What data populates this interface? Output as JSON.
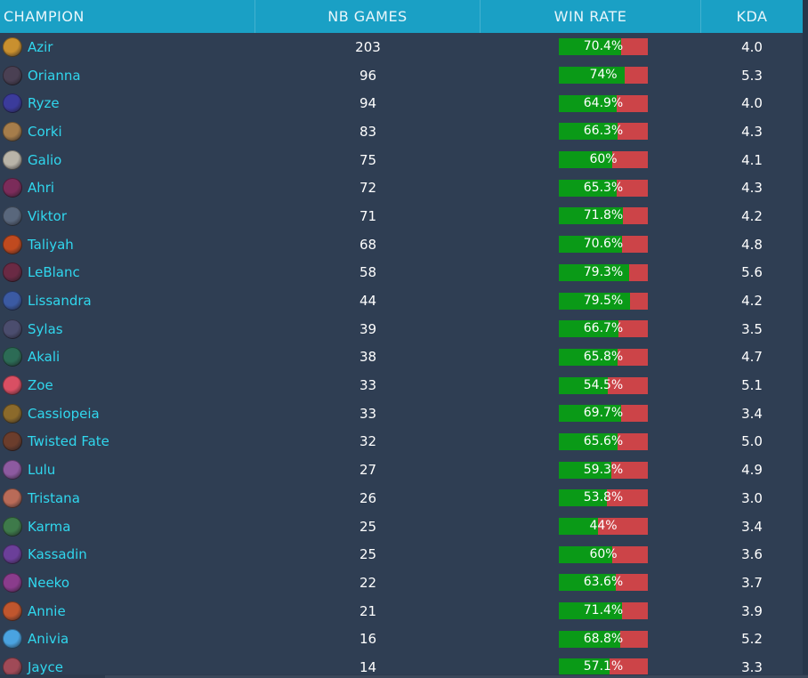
{
  "header": {
    "champion": "CHAMPION",
    "games": "NB GAMES",
    "winrate": "WIN RATE",
    "kda": "KDA"
  },
  "colors": {
    "header_bg": "#1aa0c5",
    "body_bg": "#2f3e53",
    "link": "#30d7ee",
    "win_green": "#0a9a17",
    "loss_red": "#cc4448"
  },
  "rows": [
    {
      "name": "Azir",
      "games": "203",
      "winrate": "70.4%",
      "wr": 0.704,
      "kda": "4.0",
      "icon": "azir-icon",
      "color": "#c9902f"
    },
    {
      "name": "Orianna",
      "games": "96",
      "winrate": "74%",
      "wr": 0.74,
      "kda": "5.3",
      "icon": "orianna-icon",
      "color": "#4a4053"
    },
    {
      "name": "Ryze",
      "games": "94",
      "winrate": "64.9%",
      "wr": 0.649,
      "kda": "4.0",
      "icon": "ryze-icon",
      "color": "#3b3b9b"
    },
    {
      "name": "Corki",
      "games": "83",
      "winrate": "66.3%",
      "wr": 0.663,
      "kda": "4.3",
      "icon": "corki-icon",
      "color": "#a67d4b"
    },
    {
      "name": "Galio",
      "games": "75",
      "winrate": "60%",
      "wr": 0.6,
      "kda": "4.1",
      "icon": "galio-icon",
      "color": "#b9b4a8"
    },
    {
      "name": "Ahri",
      "games": "72",
      "winrate": "65.3%",
      "wr": 0.653,
      "kda": "4.3",
      "icon": "ahri-icon",
      "color": "#7b2c5a"
    },
    {
      "name": "Viktor",
      "games": "71",
      "winrate": "71.8%",
      "wr": 0.718,
      "kda": "4.2",
      "icon": "viktor-icon",
      "color": "#59677c"
    },
    {
      "name": "Taliyah",
      "games": "68",
      "winrate": "70.6%",
      "wr": 0.706,
      "kda": "4.8",
      "icon": "taliyah-icon",
      "color": "#c04a1f"
    },
    {
      "name": "LeBlanc",
      "games": "58",
      "winrate": "79.3%",
      "wr": 0.793,
      "kda": "5.6",
      "icon": "leblanc-icon",
      "color": "#6a2a44"
    },
    {
      "name": "Lissandra",
      "games": "44",
      "winrate": "79.5%",
      "wr": 0.795,
      "kda": "4.2",
      "icon": "lissandra-icon",
      "color": "#3b5aa3"
    },
    {
      "name": "Sylas",
      "games": "39",
      "winrate": "66.7%",
      "wr": 0.667,
      "kda": "3.5",
      "icon": "sylas-icon",
      "color": "#4b4d6e"
    },
    {
      "name": "Akali",
      "games": "38",
      "winrate": "65.8%",
      "wr": 0.658,
      "kda": "4.7",
      "icon": "akali-icon",
      "color": "#2c6b55"
    },
    {
      "name": "Zoe",
      "games": "33",
      "winrate": "54.5%",
      "wr": 0.545,
      "kda": "5.1",
      "icon": "zoe-icon",
      "color": "#d94f63"
    },
    {
      "name": "Cassiopeia",
      "games": "33",
      "winrate": "69.7%",
      "wr": 0.697,
      "kda": "3.4",
      "icon": "cassiopeia-icon",
      "color": "#8b6a2b"
    },
    {
      "name": "Twisted Fate",
      "games": "32",
      "winrate": "65.6%",
      "wr": 0.656,
      "kda": "5.0",
      "icon": "twisted-fate-icon",
      "color": "#6b3d2c"
    },
    {
      "name": "Lulu",
      "games": "27",
      "winrate": "59.3%",
      "wr": 0.593,
      "kda": "4.9",
      "icon": "lulu-icon",
      "color": "#8d5aa0"
    },
    {
      "name": "Tristana",
      "games": "26",
      "winrate": "53.8%",
      "wr": 0.538,
      "kda": "3.0",
      "icon": "tristana-icon",
      "color": "#b96b58"
    },
    {
      "name": "Karma",
      "games": "25",
      "winrate": "44%",
      "wr": 0.44,
      "kda": "3.4",
      "icon": "karma-icon",
      "color": "#3e7a4a"
    },
    {
      "name": "Kassadin",
      "games": "25",
      "winrate": "60%",
      "wr": 0.6,
      "kda": "3.6",
      "icon": "kassadin-icon",
      "color": "#6b3f99"
    },
    {
      "name": "Neeko",
      "games": "22",
      "winrate": "63.6%",
      "wr": 0.636,
      "kda": "3.7",
      "icon": "neeko-icon",
      "color": "#8a3c8c"
    },
    {
      "name": "Annie",
      "games": "21",
      "winrate": "71.4%",
      "wr": 0.714,
      "kda": "3.9",
      "icon": "annie-icon",
      "color": "#c0562e"
    },
    {
      "name": "Anivia",
      "games": "16",
      "winrate": "68.8%",
      "wr": 0.688,
      "kda": "5.2",
      "icon": "anivia-icon",
      "color": "#4aa3e0"
    },
    {
      "name": "Jayce",
      "games": "14",
      "winrate": "57.1%",
      "wr": 0.571,
      "kda": "3.3",
      "icon": "jayce-icon",
      "color": "#a04a57"
    }
  ]
}
